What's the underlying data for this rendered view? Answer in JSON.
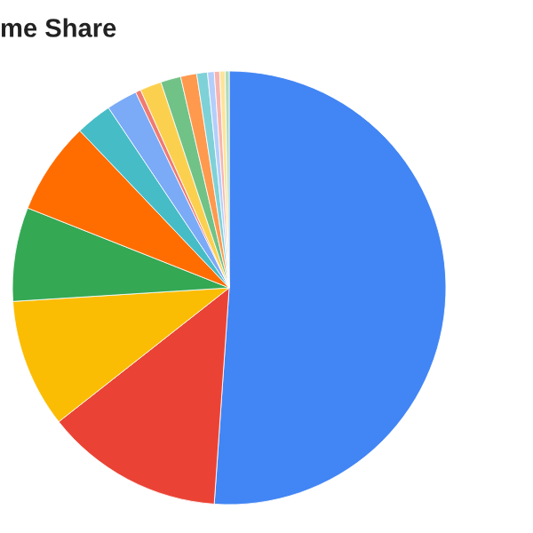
{
  "chart_data": {
    "type": "pie",
    "title": "me Share",
    "categories": [
      null,
      null,
      null,
      null,
      null,
      null,
      null,
      null,
      null,
      null,
      null,
      null,
      null,
      null,
      null,
      null
    ],
    "values": [
      51.1,
      13.3,
      9.6,
      7,
      6.9,
      2.7,
      2.3,
      0.4,
      1.6,
      1.5,
      1.2,
      0.8,
      0.5,
      0.4,
      0.4,
      0.3
    ],
    "colors": [
      "#4285f4",
      "#ea4335",
      "#fbbc04",
      "#34a853",
      "#ff6d01",
      "#46bdc6",
      "#7baaf7",
      "#f07b72",
      "#fcd04f",
      "#71c287",
      "#ff994d",
      "#7ed1d7",
      "#b3cefb",
      "#f7b4ae",
      "#fde49b",
      "#aedcba"
    ]
  }
}
